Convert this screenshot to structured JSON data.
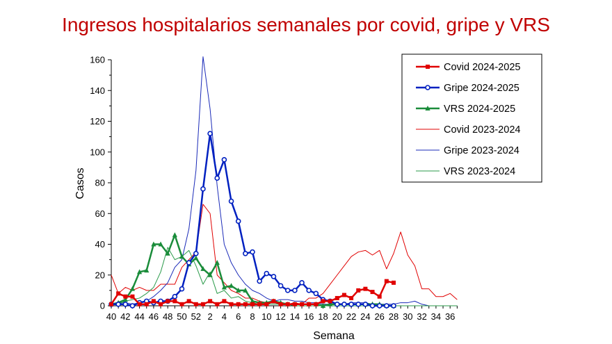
{
  "chart_data": {
    "type": "line",
    "title": "Ingresos hospitalarios semanales por covid, gripe y VRS",
    "xlabel": "Semana",
    "ylabel": "Casos",
    "ylim": [
      0,
      160
    ],
    "yticks": [
      0,
      20,
      40,
      60,
      80,
      100,
      120,
      140,
      160
    ],
    "x_tick_labels": [
      "40",
      "42",
      "44",
      "46",
      "48",
      "50",
      "52",
      "2",
      "4",
      "6",
      "8",
      "10",
      "12",
      "14",
      "16",
      "18",
      "20",
      "22",
      "24",
      "26",
      "28",
      "30",
      "32",
      "34",
      "36"
    ],
    "weeks": [
      "40",
      "41",
      "42",
      "43",
      "44",
      "45",
      "46",
      "47",
      "48",
      "49",
      "50",
      "51",
      "52",
      "1",
      "2",
      "3",
      "4",
      "5",
      "6",
      "7",
      "8",
      "9",
      "10",
      "11",
      "12",
      "13",
      "14",
      "15",
      "16",
      "17",
      "18",
      "19",
      "20",
      "21",
      "22",
      "23",
      "24",
      "25",
      "26",
      "27",
      "28",
      "29",
      "30",
      "31",
      "32",
      "33",
      "34",
      "35",
      "36",
      "37"
    ],
    "legend_position": "top-right",
    "grid": false,
    "series": [
      {
        "name": "Covid 2024-2025",
        "color": "#e00000",
        "marker": "square",
        "width": 2.5,
        "values": [
          1,
          8,
          6,
          6,
          1,
          1,
          3,
          1,
          3,
          3,
          1,
          3,
          1,
          1,
          3,
          1,
          3,
          1,
          1,
          1,
          1,
          1,
          1,
          3,
          1,
          1,
          1,
          1,
          1,
          1,
          3,
          3,
          5,
          7,
          5,
          10,
          11,
          9,
          6,
          16,
          15
        ]
      },
      {
        "name": "Gripe 2024-2025",
        "color": "#0020c0",
        "marker": "circle",
        "width": 2.5,
        "values": [
          1,
          1,
          1,
          0,
          2,
          3,
          2,
          3,
          3,
          6,
          11,
          28,
          34,
          76,
          112,
          83,
          95,
          68,
          55,
          34,
          35,
          16,
          21,
          19,
          13,
          10,
          10,
          15,
          10,
          8,
          4,
          3,
          1,
          1,
          1,
          1,
          1,
          0,
          0,
          0,
          0
        ]
      },
      {
        "name": "VRS 2024-2025",
        "color": "#1a8c3a",
        "marker": "triangle",
        "width": 2.5,
        "values": [
          1,
          2,
          4,
          11,
          22,
          23,
          40,
          40,
          34,
          46,
          32,
          27,
          31,
          24,
          20,
          28,
          12,
          13,
          10,
          10,
          3,
          2,
          2,
          3,
          2,
          1,
          1,
          1,
          1,
          1,
          0,
          1,
          1,
          1,
          1,
          1,
          1,
          1,
          1,
          0,
          0
        ]
      },
      {
        "name": "Covid 2023-2024",
        "color": "#e00000",
        "marker": "none",
        "width": 1,
        "values": [
          20,
          8,
          12,
          10,
          12,
          10,
          10,
          14,
          14,
          14,
          25,
          30,
          35,
          66,
          60,
          20,
          15,
          10,
          8,
          5,
          5,
          3,
          2,
          2,
          1,
          1,
          2,
          1,
          5,
          5,
          8,
          14,
          20,
          26,
          32,
          35,
          36,
          33,
          36,
          24,
          34,
          48,
          33,
          26,
          11,
          11,
          6,
          6,
          8,
          4
        ]
      },
      {
        "name": "Gripe 2023-2024",
        "color": "#1a2ab8",
        "marker": "none",
        "width": 1,
        "values": [
          1,
          2,
          2,
          1,
          2,
          3,
          6,
          10,
          15,
          25,
          30,
          50,
          88,
          162,
          128,
          78,
          40,
          28,
          20,
          14,
          10,
          8,
          5,
          3,
          4,
          4,
          3,
          3,
          2,
          2,
          1,
          1,
          1,
          1,
          2,
          2,
          2,
          1,
          1,
          1,
          1,
          2,
          2,
          3,
          1,
          0,
          0,
          0,
          0,
          0
        ]
      },
      {
        "name": "VRS 2023-2024",
        "color": "#2a9a4a",
        "marker": "none",
        "width": 1,
        "values": [
          1,
          1,
          3,
          4,
          5,
          8,
          12,
          22,
          38,
          30,
          32,
          36,
          26,
          14,
          22,
          8,
          10,
          5,
          6,
          3,
          2,
          1,
          1,
          1,
          1,
          1,
          0,
          0,
          0,
          0,
          0,
          0,
          0,
          0,
          0,
          0,
          0,
          0,
          0,
          0,
          0,
          0,
          0,
          0,
          0,
          0,
          0,
          0,
          0,
          0
        ]
      }
    ]
  }
}
